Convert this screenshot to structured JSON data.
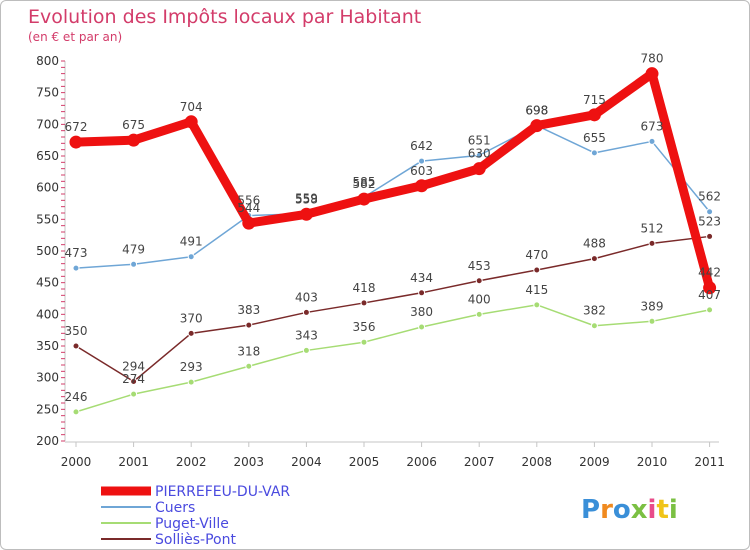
{
  "chart_data": {
    "type": "line",
    "title": "Evolution des Impôts locaux par Habitant",
    "subtitle": "(en € et par an)",
    "xlabel": "",
    "ylabel": "",
    "ylim": [
      200,
      800
    ],
    "yticks": [
      200,
      250,
      300,
      350,
      400,
      450,
      500,
      550,
      600,
      650,
      700,
      750,
      800
    ],
    "x": [
      "2000",
      "2001",
      "2002",
      "2003",
      "2004",
      "2005",
      "2006",
      "2007",
      "2008",
      "2009",
      "2010",
      "2011"
    ],
    "grid": false,
    "legend": "bottom-left",
    "series": [
      {
        "name": "PIERREFEU-DU-VAR",
        "color": "#ee1111",
        "values": [
          672,
          675,
          704,
          544,
          558,
          582,
          603,
          630,
          698,
          715,
          780,
          442
        ]
      },
      {
        "name": "Cuers",
        "color": "#6fa6d6",
        "values": [
          473,
          479,
          491,
          556,
          559,
          585,
          642,
          651,
          698,
          655,
          673,
          562
        ]
      },
      {
        "name": "Puget-Ville",
        "color": "#a6dc74",
        "values": [
          246,
          274,
          293,
          318,
          343,
          356,
          380,
          400,
          415,
          382,
          389,
          407
        ]
      },
      {
        "name": "Solliès-Pont",
        "color": "#7a2a2a",
        "values": [
          350,
          294,
          370,
          383,
          403,
          418,
          434,
          453,
          470,
          488,
          512,
          523
        ]
      }
    ]
  },
  "logo": {
    "text": "Proxiti"
  }
}
